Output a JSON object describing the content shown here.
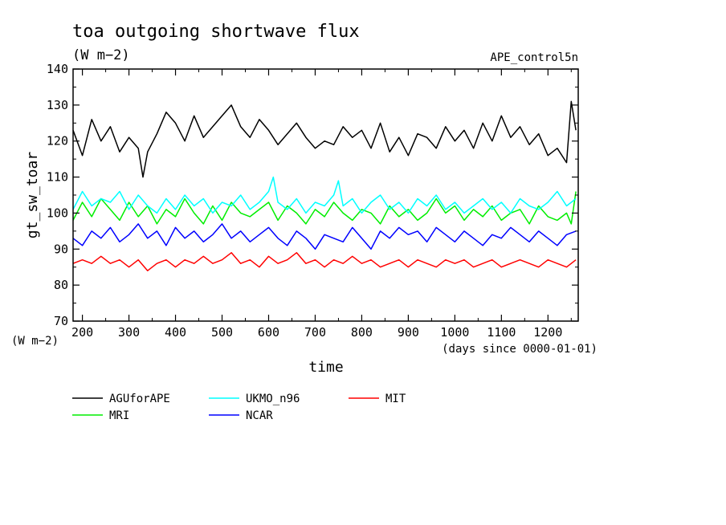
{
  "chart_data": {
    "type": "line",
    "title": "toa outgoing shortwave flux",
    "subtitle": "(W m−2)",
    "tag": "APE_control5n",
    "xlabel": "time",
    "xunits": "(days since 0000-01-01)",
    "ylabel": "gt_sw_toar",
    "yunits": "(W m−2)",
    "xlim": [
      180,
      1265
    ],
    "ylim": [
      70,
      140
    ],
    "xticks": [
      200,
      300,
      400,
      500,
      600,
      700,
      800,
      900,
      1000,
      1100,
      1200
    ],
    "yticks": [
      70,
      80,
      90,
      100,
      110,
      120,
      130,
      140
    ],
    "grid": false,
    "legend_position": "bottom",
    "series": [
      {
        "name": "AGUforAPE",
        "color": "#000000",
        "x": [
          180,
          200,
          220,
          240,
          260,
          280,
          300,
          320,
          330,
          340,
          360,
          380,
          400,
          420,
          440,
          460,
          480,
          500,
          520,
          540,
          560,
          580,
          600,
          620,
          640,
          660,
          680,
          700,
          720,
          740,
          760,
          780,
          800,
          820,
          840,
          860,
          880,
          900,
          920,
          940,
          960,
          980,
          1000,
          1020,
          1040,
          1060,
          1080,
          1100,
          1120,
          1140,
          1160,
          1180,
          1200,
          1220,
          1240,
          1250,
          1260
        ],
        "y": [
          123,
          116,
          126,
          120,
          124,
          117,
          121,
          118,
          110,
          117,
          122,
          128,
          125,
          120,
          127,
          121,
          124,
          127,
          130,
          124,
          121,
          126,
          123,
          119,
          122,
          125,
          121,
          118,
          120,
          119,
          124,
          121,
          123,
          118,
          125,
          117,
          121,
          116,
          122,
          121,
          118,
          124,
          120,
          123,
          118,
          125,
          120,
          127,
          121,
          124,
          119,
          122,
          116,
          118,
          114,
          131,
          123
        ]
      },
      {
        "name": "MRI",
        "color": "#00ee00",
        "x": [
          180,
          200,
          220,
          240,
          260,
          280,
          300,
          320,
          340,
          360,
          380,
          400,
          420,
          440,
          460,
          480,
          500,
          520,
          540,
          560,
          580,
          600,
          620,
          640,
          660,
          680,
          700,
          720,
          740,
          760,
          780,
          800,
          820,
          840,
          860,
          880,
          900,
          920,
          940,
          960,
          980,
          1000,
          1020,
          1040,
          1060,
          1080,
          1100,
          1120,
          1140,
          1160,
          1180,
          1200,
          1220,
          1240,
          1250,
          1260
        ],
        "y": [
          98,
          103,
          99,
          104,
          101,
          98,
          103,
          99,
          102,
          97,
          101,
          99,
          104,
          100,
          97,
          102,
          98,
          103,
          100,
          99,
          101,
          103,
          98,
          102,
          100,
          97,
          101,
          99,
          103,
          100,
          98,
          101,
          100,
          97,
          102,
          99,
          101,
          98,
          100,
          104,
          100,
          102,
          98,
          101,
          99,
          102,
          98,
          100,
          101,
          97,
          102,
          99,
          98,
          100,
          97,
          106
        ]
      },
      {
        "name": "UKMO_n96",
        "color": "#00ffff",
        "x": [
          180,
          200,
          220,
          240,
          260,
          280,
          300,
          320,
          340,
          360,
          380,
          400,
          420,
          440,
          460,
          480,
          500,
          520,
          540,
          560,
          580,
          600,
          610,
          620,
          640,
          660,
          680,
          700,
          720,
          740,
          750,
          760,
          780,
          800,
          820,
          840,
          860,
          880,
          900,
          920,
          940,
          960,
          980,
          1000,
          1020,
          1040,
          1060,
          1080,
          1100,
          1120,
          1140,
          1160,
          1180,
          1200,
          1220,
          1240,
          1260
        ],
        "y": [
          101,
          106,
          102,
          104,
          103,
          106,
          101,
          105,
          102,
          100,
          104,
          101,
          105,
          102,
          104,
          100,
          103,
          102,
          105,
          101,
          103,
          106,
          110,
          103,
          101,
          104,
          100,
          103,
          102,
          105,
          109,
          102,
          104,
          100,
          103,
          105,
          101,
          103,
          100,
          104,
          102,
          105,
          101,
          103,
          100,
          102,
          104,
          101,
          103,
          100,
          104,
          102,
          101,
          103,
          106,
          102,
          104
        ]
      },
      {
        "name": "NCAR",
        "color": "#0000ff",
        "x": [
          180,
          200,
          220,
          240,
          260,
          280,
          300,
          320,
          340,
          360,
          380,
          400,
          420,
          440,
          460,
          480,
          500,
          520,
          540,
          560,
          580,
          600,
          620,
          640,
          660,
          680,
          700,
          720,
          740,
          760,
          780,
          800,
          820,
          840,
          860,
          880,
          900,
          920,
          940,
          960,
          980,
          1000,
          1020,
          1040,
          1060,
          1080,
          1100,
          1120,
          1140,
          1160,
          1180,
          1200,
          1220,
          1240,
          1260
        ],
        "y": [
          93,
          91,
          95,
          93,
          96,
          92,
          94,
          97,
          93,
          95,
          91,
          96,
          93,
          95,
          92,
          94,
          97,
          93,
          95,
          92,
          94,
          96,
          93,
          91,
          95,
          93,
          90,
          94,
          93,
          92,
          96,
          93,
          90,
          95,
          93,
          96,
          94,
          95,
          92,
          96,
          94,
          92,
          95,
          93,
          91,
          94,
          93,
          96,
          94,
          92,
          95,
          93,
          91,
          94,
          95
        ]
      },
      {
        "name": "MIT",
        "color": "#ff0000",
        "x": [
          180,
          200,
          220,
          240,
          260,
          280,
          300,
          320,
          340,
          360,
          380,
          400,
          420,
          440,
          460,
          480,
          500,
          520,
          540,
          560,
          580,
          600,
          620,
          640,
          660,
          680,
          700,
          720,
          740,
          760,
          780,
          800,
          820,
          840,
          860,
          880,
          900,
          920,
          940,
          960,
          980,
          1000,
          1020,
          1040,
          1060,
          1080,
          1100,
          1120,
          1140,
          1160,
          1180,
          1200,
          1220,
          1240,
          1260
        ],
        "y": [
          86,
          87,
          86,
          88,
          86,
          87,
          85,
          87,
          84,
          86,
          87,
          85,
          87,
          86,
          88,
          86,
          87,
          89,
          86,
          87,
          85,
          88,
          86,
          87,
          89,
          86,
          87,
          85,
          87,
          86,
          88,
          86,
          87,
          85,
          86,
          87,
          85,
          87,
          86,
          85,
          87,
          86,
          87,
          85,
          86,
          87,
          85,
          86,
          87,
          86,
          85,
          87,
          86,
          85,
          87
        ]
      }
    ]
  }
}
